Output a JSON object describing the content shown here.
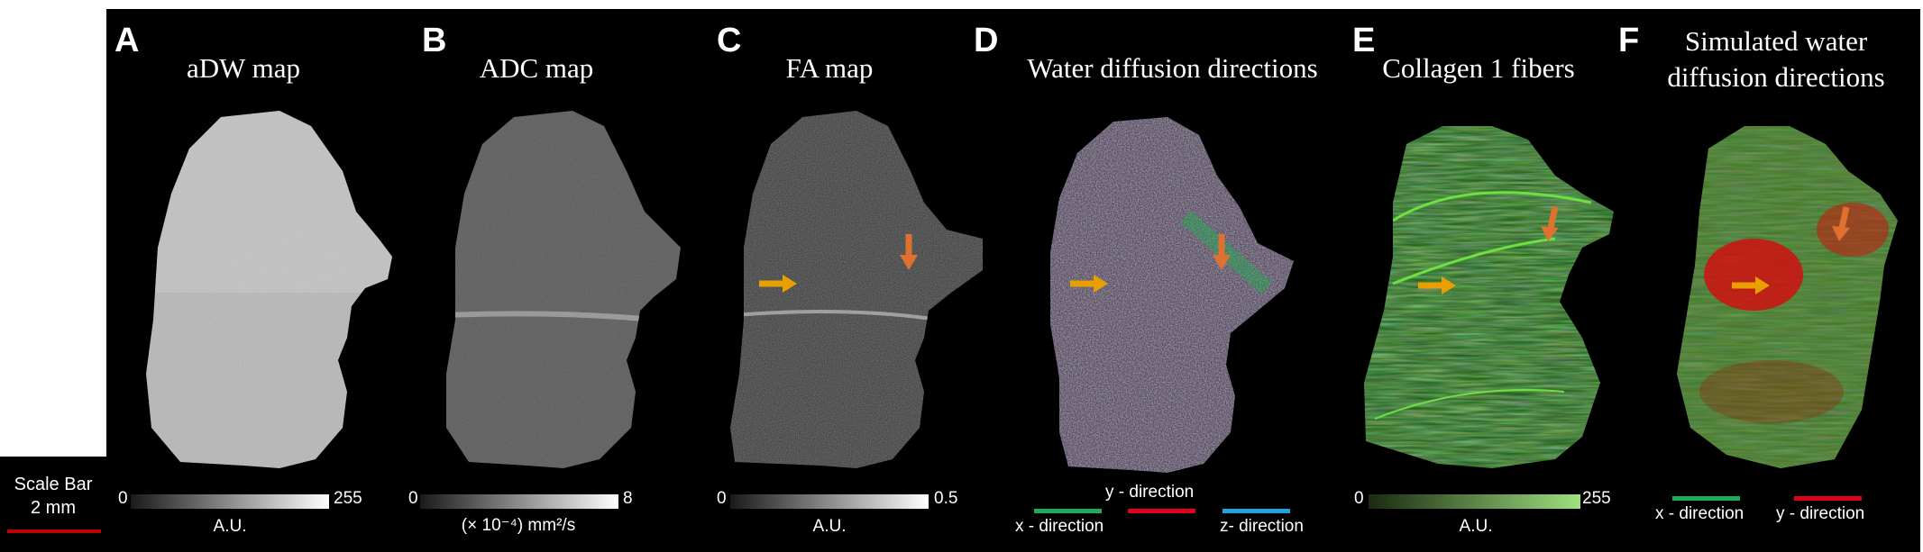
{
  "scale": {
    "label_line1": "Scale Bar",
    "label_line2": "2 mm",
    "color": "#c00000"
  },
  "panels": [
    {
      "letter": "A",
      "title": "aDW map",
      "min": "0",
      "max": "255",
      "unit": "A.U."
    },
    {
      "letter": "B",
      "title": "ADC map",
      "min": "0",
      "max": "8",
      "unit": "(× 10⁻⁴) mm²/s"
    },
    {
      "letter": "C",
      "title": "FA map",
      "min": "0",
      "max": "0.5",
      "unit": "A.U."
    },
    {
      "letter": "D",
      "title": "Water diffusion directions",
      "legend": {
        "x": "x - direction",
        "y": "y - direction",
        "z": "z- direction"
      }
    },
    {
      "letter": "E",
      "title": "Collagen 1 fibers",
      "min": "0",
      "max": "255",
      "unit": "A.U."
    },
    {
      "letter": "F",
      "title_line1": "Simulated water",
      "title_line2": "diffusion directions",
      "legend": {
        "x": "x - direction",
        "y": "y - direction"
      }
    }
  ],
  "colors": {
    "x": "#1faa5a",
    "y": "#e0001a",
    "z": "#1fa3e0",
    "arrow": "#e8a000",
    "arrow_alt": "#e07030"
  }
}
